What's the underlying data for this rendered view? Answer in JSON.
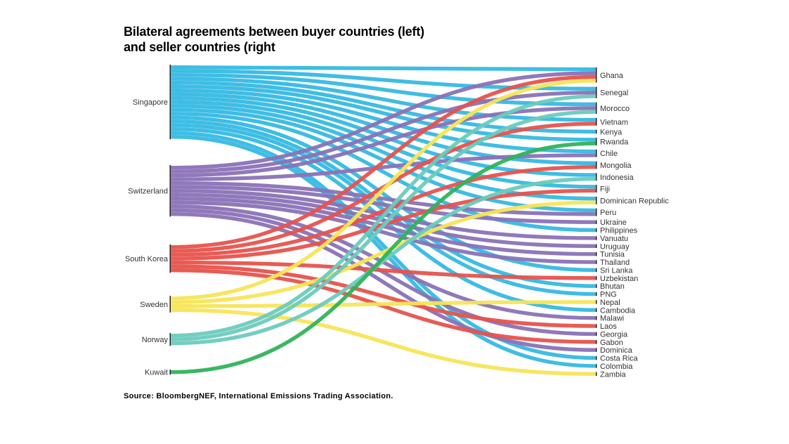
{
  "title": {
    "line1": "Bilateral agreements between buyer countries (left)",
    "line2": "and seller countries (right"
  },
  "source": "Source: BloombergNEF, International Emissions Trading Association.",
  "chart_data": {
    "type": "sankey",
    "buyers": [
      {
        "name": "Singapore",
        "color": "#35b9e3"
      },
      {
        "name": "Switzerland",
        "color": "#8a72b6"
      },
      {
        "name": "South Korea",
        "color": "#e8524c"
      },
      {
        "name": "Sweden",
        "color": "#f7e556"
      },
      {
        "name": "Norway",
        "color": "#6ccbbd"
      },
      {
        "name": "Kuwait",
        "color": "#2fb35a"
      }
    ],
    "sellers": [
      "Ghana",
      "Senegal",
      "Morocco",
      "Vietnam",
      "Kenya",
      "Rwanda",
      "Chile",
      "Mongolia",
      "Indonesia",
      "Fiji",
      "Dominican Republic",
      "Peru",
      "Ukraine",
      "Philippines",
      "Vanuatu",
      "Uruguay",
      "Tunisia",
      "Thailand",
      "Sri Lanka",
      "Uzbekistan",
      "Bhutan",
      "PNG",
      "Nepal",
      "Cambodia",
      "Malawi",
      "Laos",
      "Georgia",
      "Gabon",
      "Dominica",
      "Costa Rica",
      "Colombia",
      "Zambia"
    ],
    "links": [
      {
        "source": "Singapore",
        "target": "Ghana"
      },
      {
        "source": "Singapore",
        "target": "Senegal"
      },
      {
        "source": "Singapore",
        "target": "Morocco"
      },
      {
        "source": "Singapore",
        "target": "Vietnam"
      },
      {
        "source": "Singapore",
        "target": "Kenya"
      },
      {
        "source": "Singapore",
        "target": "Rwanda"
      },
      {
        "source": "Singapore",
        "target": "Chile"
      },
      {
        "source": "Singapore",
        "target": "Mongolia"
      },
      {
        "source": "Singapore",
        "target": "Indonesia"
      },
      {
        "source": "Singapore",
        "target": "Fiji"
      },
      {
        "source": "Singapore",
        "target": "Dominican Republic"
      },
      {
        "source": "Singapore",
        "target": "Peru"
      },
      {
        "source": "Singapore",
        "target": "Philippines"
      },
      {
        "source": "Singapore",
        "target": "Sri Lanka"
      },
      {
        "source": "Singapore",
        "target": "Bhutan"
      },
      {
        "source": "Singapore",
        "target": "PNG"
      },
      {
        "source": "Singapore",
        "target": "Cambodia"
      },
      {
        "source": "Singapore",
        "target": "Costa Rica"
      },
      {
        "source": "Singapore",
        "target": "Colombia"
      },
      {
        "source": "Switzerland",
        "target": "Ghana"
      },
      {
        "source": "Switzerland",
        "target": "Senegal"
      },
      {
        "source": "Switzerland",
        "target": "Morocco"
      },
      {
        "source": "Switzerland",
        "target": "Chile"
      },
      {
        "source": "Switzerland",
        "target": "Peru"
      },
      {
        "source": "Switzerland",
        "target": "Ukraine"
      },
      {
        "source": "Switzerland",
        "target": "Vanuatu"
      },
      {
        "source": "Switzerland",
        "target": "Uruguay"
      },
      {
        "source": "Switzerland",
        "target": "Tunisia"
      },
      {
        "source": "Switzerland",
        "target": "Thailand"
      },
      {
        "source": "Switzerland",
        "target": "Malawi"
      },
      {
        "source": "Switzerland",
        "target": "Georgia"
      },
      {
        "source": "Switzerland",
        "target": "Dominica"
      },
      {
        "source": "South Korea",
        "target": "Ghana"
      },
      {
        "source": "South Korea",
        "target": "Vietnam"
      },
      {
        "source": "South Korea",
        "target": "Mongolia"
      },
      {
        "source": "South Korea",
        "target": "Fiji"
      },
      {
        "source": "South Korea",
        "target": "Uzbekistan"
      },
      {
        "source": "South Korea",
        "target": "Laos"
      },
      {
        "source": "South Korea",
        "target": "Gabon"
      },
      {
        "source": "Sweden",
        "target": "Ghana"
      },
      {
        "source": "Sweden",
        "target": "Dominican Republic"
      },
      {
        "source": "Sweden",
        "target": "Nepal"
      },
      {
        "source": "Sweden",
        "target": "Zambia"
      },
      {
        "source": "Norway",
        "target": "Senegal"
      },
      {
        "source": "Norway",
        "target": "Morocco"
      },
      {
        "source": "Norway",
        "target": "Indonesia"
      },
      {
        "source": "Kuwait",
        "target": "Rwanda"
      }
    ]
  }
}
